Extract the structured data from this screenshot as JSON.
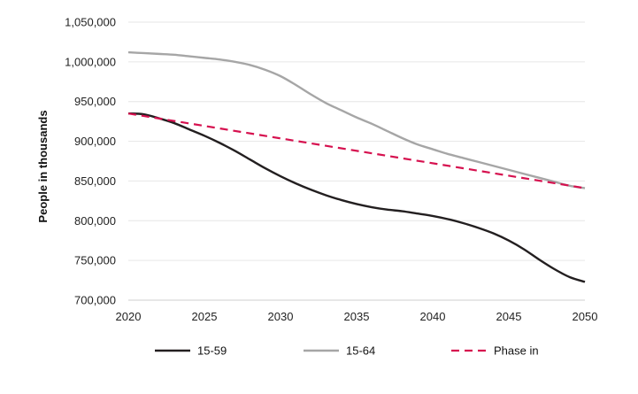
{
  "chart_data": {
    "type": "line",
    "ylabel": "People in thousands",
    "xlabel": "",
    "title": "",
    "xlim": [
      2020,
      2050
    ],
    "ylim": [
      700000,
      1050000
    ],
    "x_ticks": [
      2020,
      2025,
      2030,
      2035,
      2040,
      2045,
      2050
    ],
    "x_tick_labels": [
      "2020",
      "2025",
      "2030",
      "2035",
      "2040",
      "2045",
      "2050"
    ],
    "y_ticks": [
      700000,
      750000,
      800000,
      850000,
      900000,
      950000,
      1000000,
      1050000
    ],
    "y_tick_labels": [
      "700,000",
      "750,000",
      "800,000",
      "850,000",
      "900,000",
      "950,000",
      "1,000,000",
      "1,050,000"
    ],
    "grid": true,
    "legend_position": "bottom",
    "series": [
      {
        "name": "15-59",
        "color": "#231f20",
        "style": "solid",
        "x": [
          2020,
          2021,
          2022,
          2023,
          2024,
          2025,
          2026,
          2027,
          2028,
          2029,
          2030,
          2031,
          2032,
          2033,
          2034,
          2035,
          2036,
          2037,
          2038,
          2039,
          2040,
          2041,
          2042,
          2043,
          2044,
          2045,
          2046,
          2047,
          2048,
          2049,
          2050
        ],
        "values": [
          935000,
          934000,
          929000,
          923000,
          915000,
          907000,
          898000,
          888000,
          877000,
          866000,
          856000,
          847000,
          839000,
          832000,
          826000,
          821000,
          817000,
          814000,
          812000,
          809000,
          806000,
          802000,
          797000,
          791000,
          784000,
          775000,
          764000,
          751000,
          739000,
          729000,
          723000
        ]
      },
      {
        "name": "15-64",
        "color": "#a6a6a6",
        "style": "solid",
        "x": [
          2020,
          2021,
          2022,
          2023,
          2024,
          2025,
          2026,
          2027,
          2028,
          2029,
          2030,
          2031,
          2032,
          2033,
          2034,
          2035,
          2036,
          2037,
          2038,
          2039,
          2040,
          2041,
          2042,
          2043,
          2044,
          2045,
          2046,
          2047,
          2048,
          2049,
          2050
        ],
        "values": [
          1012000,
          1011000,
          1010000,
          1009000,
          1007000,
          1005000,
          1003000,
          1000000,
          996000,
          990000,
          982000,
          971000,
          959000,
          948000,
          939000,
          930000,
          922000,
          913000,
          904000,
          896000,
          890000,
          884000,
          879000,
          874000,
          869000,
          864000,
          859000,
          854000,
          849000,
          844000,
          841000
        ]
      },
      {
        "name": "Phase in",
        "color": "#d6114f",
        "style": "dashed",
        "x": [
          2020,
          2050
        ],
        "values": [
          935000,
          841000
        ]
      }
    ]
  }
}
